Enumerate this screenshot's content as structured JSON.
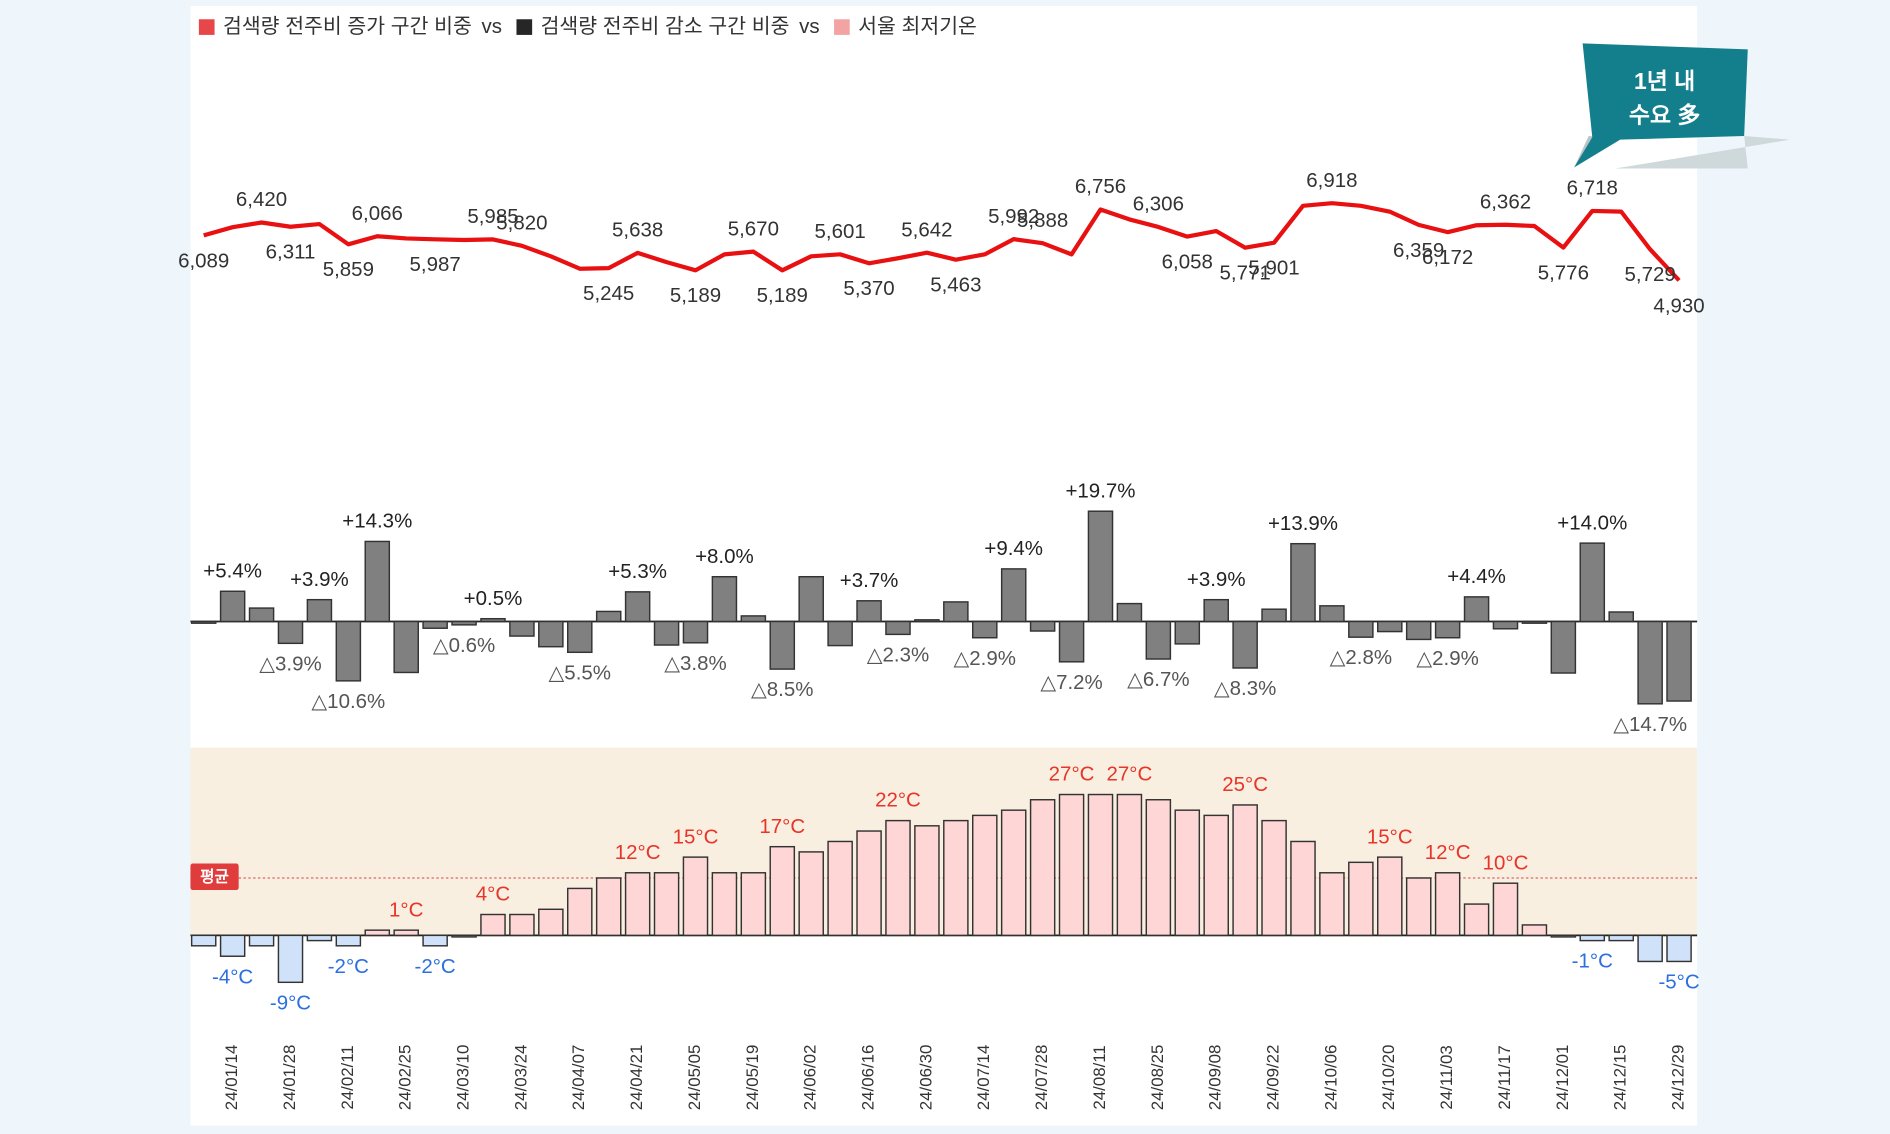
{
  "legend": [
    {
      "label": "검색량 전주비 증가 구간 비중",
      "color": "#e8474a"
    },
    {
      "label": "검색량 전주비 감소 구간 비중",
      "color": "#262626"
    },
    {
      "label": "서울 최저기온",
      "color": "#f4a3a3"
    }
  ],
  "legend_separator": "vs",
  "badge": [
    "1년 내",
    "수요 多"
  ],
  "chart_data": [
    {
      "type": "line",
      "color": "#e81010",
      "values": [
        6089,
        6300,
        6420,
        6311,
        6380,
        5859,
        6066,
        6010,
        5987,
        5970,
        5985,
        5820,
        5550,
        5230,
        5245,
        5638,
        5400,
        5189,
        5600,
        5670,
        5189,
        5550,
        5601,
        5370,
        5500,
        5642,
        5463,
        5600,
        5992,
        5888,
        5600,
        6756,
        6500,
        6306,
        6058,
        6200,
        5771,
        5901,
        6850,
        6918,
        6850,
        6700,
        6359,
        6172,
        6350,
        6362,
        6330,
        5776,
        6718,
        6700,
        5729,
        4930
      ],
      "value_labels": [
        "6,089",
        null,
        "6,420",
        "6,311",
        null,
        "5,859",
        "6,066",
        null,
        "5,987",
        null,
        "5,985",
        "5,820",
        null,
        null,
        "5,245",
        "5,638",
        null,
        "5,189",
        null,
        "5,670",
        "5,189",
        null,
        "5,601",
        "5,370",
        null,
        "5,642",
        "5,463",
        null,
        "5,992",
        "5,888",
        null,
        "6,756",
        null,
        "6,306",
        "6,058",
        null,
        "5,771",
        "5,901",
        null,
        "6,918",
        null,
        null,
        "6,359",
        "6,172",
        null,
        "6,362",
        null,
        "5,776",
        "6,718",
        null,
        "5,729",
        "4,930"
      ],
      "ylim": [
        4400,
        7500
      ]
    },
    {
      "type": "bar",
      "color": "#808080",
      "values": [
        -0.3,
        5.4,
        2.4,
        -3.9,
        3.9,
        -10.6,
        14.3,
        -9.1,
        -1.2,
        -0.6,
        0.5,
        -2.6,
        -4.5,
        -5.5,
        1.8,
        5.3,
        -4.2,
        -3.8,
        8.0,
        1.0,
        -8.5,
        8.0,
        -4.3,
        3.7,
        -2.3,
        0.3,
        3.5,
        -2.9,
        9.4,
        -1.7,
        -7.2,
        19.7,
        3.2,
        -6.7,
        -4.0,
        3.9,
        -8.3,
        2.2,
        13.9,
        2.8,
        -2.8,
        -1.8,
        -3.2,
        -2.9,
        4.4,
        -1.3,
        -0.3,
        -9.2,
        14.0,
        1.7,
        -14.7,
        -14.2
      ],
      "value_labels": [
        null,
        "+5.4%",
        null,
        "△3.9%",
        "+3.9%",
        "△10.6%",
        "+14.3%",
        null,
        null,
        "△0.6%",
        "+0.5%",
        null,
        null,
        "△5.5%",
        null,
        "+5.3%",
        null,
        "△3.8%",
        "+8.0%",
        null,
        "△8.5%",
        null,
        null,
        "+3.7%",
        "△2.3%",
        null,
        null,
        "△2.9%",
        "+9.4%",
        null,
        "△7.2%",
        "+19.7%",
        null,
        "△6.7%",
        null,
        "+3.9%",
        "△8.3%",
        null,
        "+13.9%",
        null,
        "△2.8%",
        null,
        null,
        "△2.9%",
        "+4.4%",
        null,
        null,
        null,
        "+14.0%",
        null,
        "△14.7%",
        null
      ],
      "ylim": [
        -18,
        25
      ]
    },
    {
      "type": "bar",
      "color": "#ffd6d6",
      "negative_color": "#cfe2f9",
      "label_color": "#e8352a",
      "negative_label_color": "#2b6fe0",
      "categories": [
        null,
        "24/01/14",
        null,
        "24/01/28",
        null,
        "24/02/11",
        null,
        "24/02/25",
        null,
        "24/03/10",
        null,
        "24/03/24",
        null,
        "24/04/07",
        null,
        "24/04/21",
        null,
        "24/05/05",
        null,
        "24/05/19",
        null,
        "24/06/02",
        null,
        "24/06/16",
        null,
        "24/06/30",
        null,
        "24/07/14",
        null,
        "24/07/28",
        null,
        "24/08/11",
        null,
        "24/08/25",
        null,
        "24/09/08",
        null,
        "24/09/22",
        null,
        "24/10/06",
        null,
        "24/10/20",
        null,
        "24/11/03",
        null,
        "24/11/17",
        null,
        "24/12/01",
        null,
        "24/12/15",
        null,
        "24/12/29"
      ],
      "values": [
        -2,
        -4,
        -2,
        -9,
        -1,
        -2,
        1,
        1,
        -2,
        -0.3,
        4,
        4,
        5,
        9,
        11,
        12,
        12,
        15,
        12,
        12,
        17,
        16,
        18,
        20,
        22,
        21,
        22,
        23,
        24,
        26,
        27,
        27,
        27,
        26,
        24,
        23,
        25,
        22,
        18,
        12,
        14,
        15,
        11,
        12,
        6,
        10,
        2,
        -0.3,
        -1,
        -1,
        -5,
        -5
      ],
      "value_labels": [
        null,
        "-4°C",
        null,
        "-9°C",
        null,
        "-2°C",
        null,
        "1°C",
        "-2°C",
        null,
        "4°C",
        null,
        null,
        null,
        null,
        "12°C",
        null,
        "15°C",
        null,
        null,
        "17°C",
        null,
        null,
        null,
        "22°C",
        null,
        null,
        null,
        null,
        null,
        "27°C",
        null,
        "27°C",
        null,
        null,
        null,
        "25°C",
        null,
        null,
        null,
        null,
        "15°C",
        null,
        "12°C",
        null,
        "10°C",
        null,
        null,
        "-1°C",
        null,
        null,
        "-5°C"
      ],
      "average": {
        "value": 11,
        "label": "평균"
      },
      "ylim": [
        -15,
        36
      ]
    }
  ]
}
